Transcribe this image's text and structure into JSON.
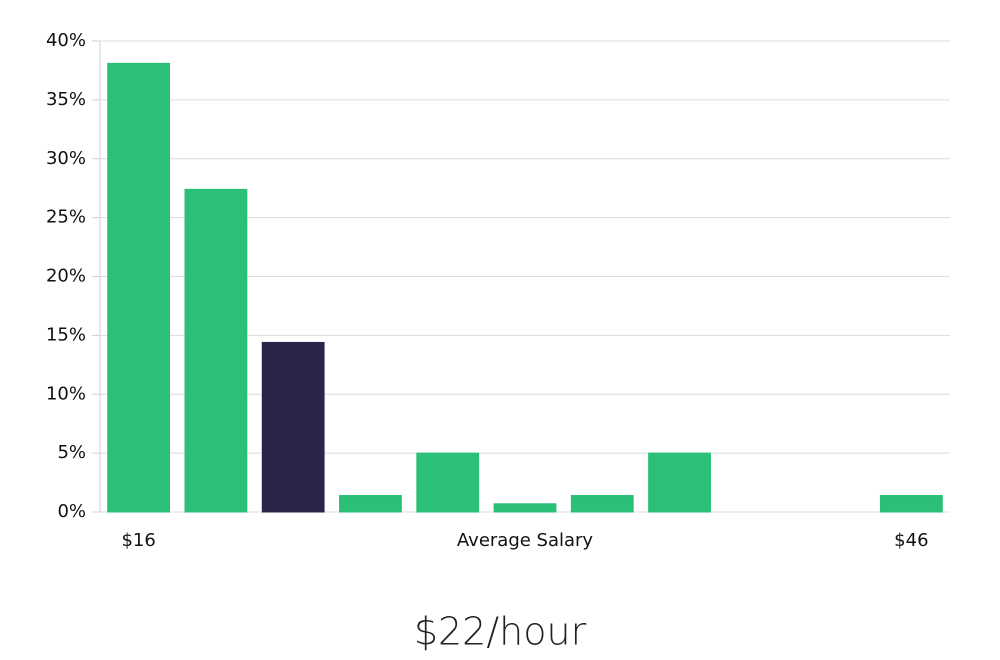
{
  "chart_data": {
    "type": "bar",
    "categories": [
      "$16",
      null,
      null,
      null,
      null,
      null,
      null,
      null,
      null,
      null,
      "$46"
    ],
    "values": [
      38.1,
      27.4,
      14.4,
      1.4,
      5.0,
      0.7,
      1.4,
      5.0,
      0,
      0,
      1.4
    ],
    "colors": [
      "#2bbf77",
      "#2bbf77",
      "#29264a",
      "#2bbf77",
      "#2bbf77",
      "#2bbf77",
      "#2bbf77",
      "#2bbf77",
      "#2bbf77",
      "#2bbf77",
      "#2bbf77"
    ],
    "x_label": "Average Salary",
    "annotation": "$22/hour",
    "ylim": [
      0,
      40
    ],
    "yticks": [
      {
        "value": 0,
        "label": "0%"
      },
      {
        "value": 5,
        "label": "5%"
      },
      {
        "value": 10,
        "label": "10%"
      },
      {
        "value": 15,
        "label": "15%"
      },
      {
        "value": 20,
        "label": "20%"
      },
      {
        "value": 25,
        "label": "25%"
      },
      {
        "value": 30,
        "label": "30%"
      },
      {
        "value": 35,
        "label": "35%"
      },
      {
        "value": 40,
        "label": "40%"
      }
    ],
    "grid": true
  }
}
